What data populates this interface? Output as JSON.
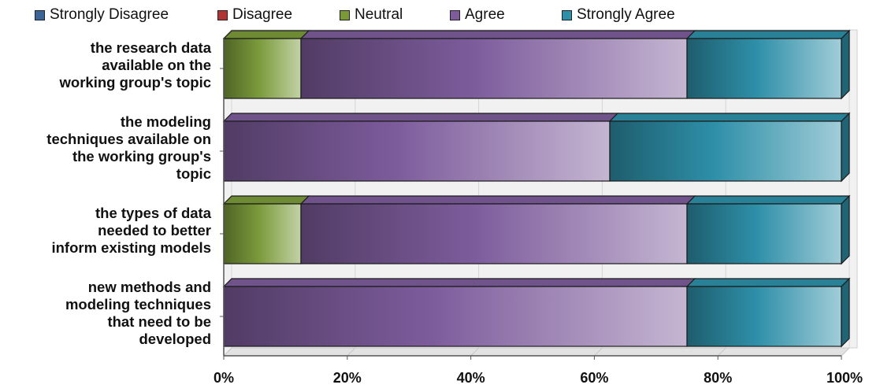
{
  "chart_data": {
    "type": "bar",
    "orientation": "horizontal",
    "stacked": "percent",
    "legend_position": "top",
    "grid": true,
    "categories": [
      "the research data available on the working group's topic",
      "the modeling techniques available on the working group's topic",
      "the types of data needed to better inform existing models",
      "new methods and modeling techniques that need to be developed"
    ],
    "category_lines": [
      [
        "the research data",
        "available on the",
        "working group's topic"
      ],
      [
        "the modeling",
        "techniques available on",
        "the working group's",
        "topic"
      ],
      [
        "the types of data",
        "needed to better",
        "inform existing models"
      ],
      [
        "new methods and",
        "modeling techniques",
        "that need to be",
        "developed"
      ]
    ],
    "series": [
      {
        "name": "Strongly Disagree",
        "color": "#3b6596",
        "values": [
          0,
          0,
          0,
          0
        ]
      },
      {
        "name": "Disagree",
        "color": "#b03434",
        "values": [
          0,
          0,
          0,
          0
        ]
      },
      {
        "name": "Neutral",
        "color": "#7a9a3a",
        "values": [
          12.5,
          0,
          12.5,
          0
        ]
      },
      {
        "name": "Agree",
        "color": "#7d5c9c",
        "values": [
          62.5,
          62.5,
          62.5,
          75
        ]
      },
      {
        "name": "Strongly Agree",
        "color": "#2e8fa8",
        "values": [
          25,
          37.5,
          25,
          25
        ]
      }
    ],
    "xlim": [
      0,
      100
    ],
    "x_ticks": [
      "0%",
      "20%",
      "40%",
      "60%",
      "80%",
      "100%"
    ]
  }
}
